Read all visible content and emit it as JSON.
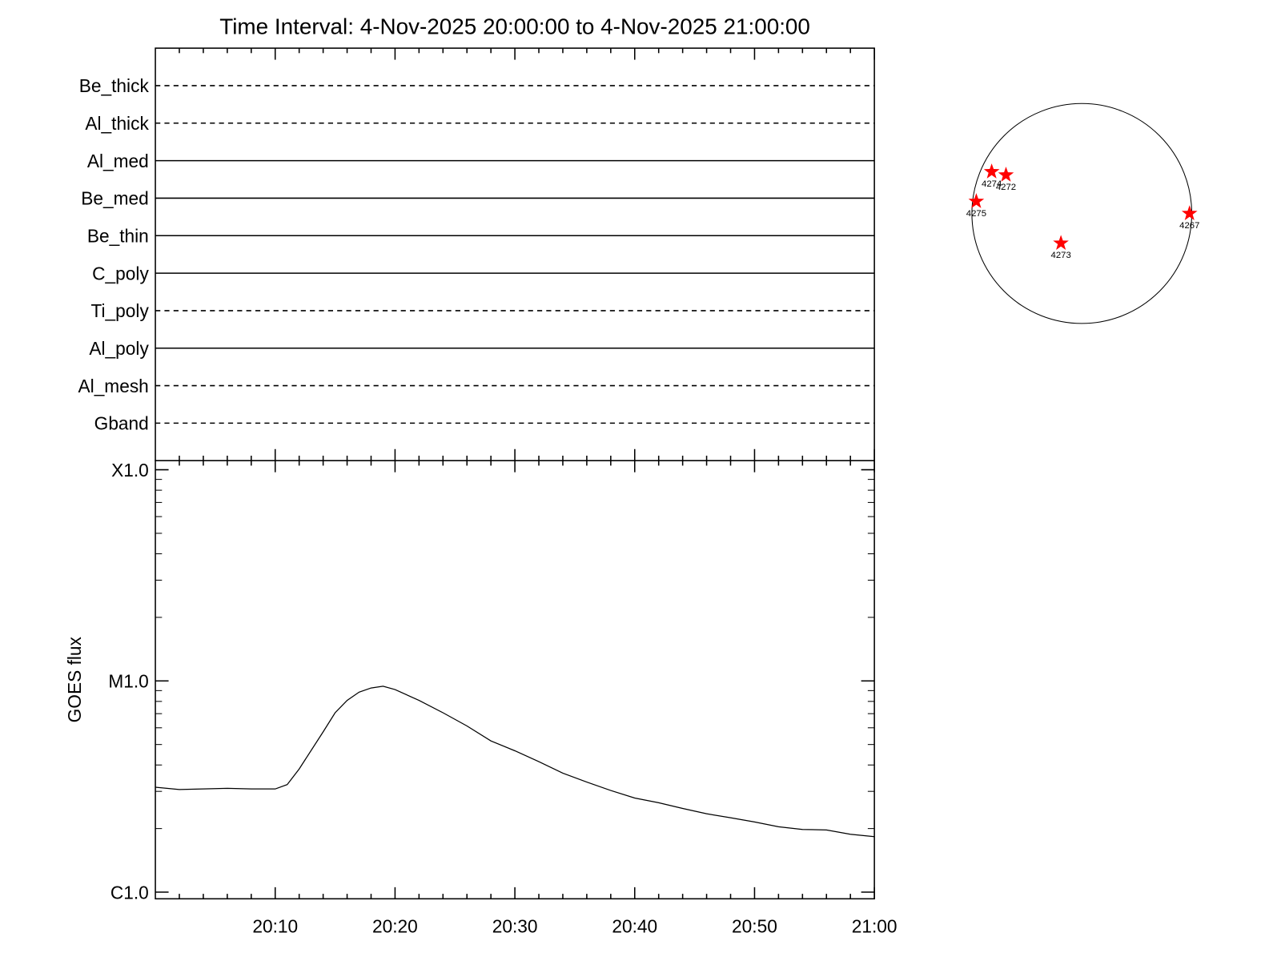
{
  "chart_data": [
    {
      "type": "timeline",
      "title": "Time Interval:  4-Nov-2025 20:00:00 to  4-Nov-2025 21:00:00",
      "categories": [
        "Be_thick",
        "Al_thick",
        "Al_med",
        "Be_med",
        "Be_thin",
        "C_poly",
        "Ti_poly",
        "Al_poly",
        "Al_mesh",
        "Gband"
      ],
      "line_styles": [
        "dashed",
        "dashed",
        "solid",
        "solid",
        "solid",
        "solid",
        "dashed",
        "solid",
        "dashed",
        "dashed"
      ],
      "xlim": [
        "20:00",
        "21:00"
      ]
    },
    {
      "type": "line",
      "ylabel": "GOES flux",
      "color": "#000000",
      "x": [
        "20:00",
        "20:02",
        "20:04",
        "20:06",
        "20:08",
        "20:10",
        "20:11",
        "20:12",
        "20:14",
        "20:15",
        "20:16",
        "20:17",
        "20:18",
        "20:19",
        "20:20",
        "20:22",
        "20:24",
        "20:26",
        "20:28",
        "20:30",
        "20:32",
        "20:34",
        "20:36",
        "20:38",
        "20:40",
        "20:42",
        "20:44",
        "20:46",
        "20:48",
        "20:50",
        "20:52",
        "20:54",
        "20:56",
        "20:58",
        "21:00"
      ],
      "values": [
        3.14e-06,
        3.06e-06,
        3.08e-06,
        3.1e-06,
        3.08e-06,
        3.08e-06,
        3.23e-06,
        3.83e-06,
        5.74e-06,
        7.07e-06,
        8.09e-06,
        8.85e-06,
        9.26e-06,
        9.44e-06,
        9.1e-06,
        8.09e-06,
        7.07e-06,
        6.12e-06,
        5.2e-06,
        4.67e-06,
        4.15e-06,
        3.66e-06,
        3.32e-06,
        3.03e-06,
        2.79e-06,
        2.65e-06,
        2.49e-06,
        2.35e-06,
        2.25e-06,
        2.15e-06,
        2.04e-06,
        1.98e-06,
        1.97e-06,
        1.88e-06,
        1.83e-06
      ],
      "xlim": [
        "20:00",
        "21:00"
      ],
      "xticks": [
        "20:10",
        "20:20",
        "20:30",
        "20:40",
        "20:50",
        "21:00"
      ],
      "minor_xticks": [
        "20:02",
        "20:04",
        "20:06",
        "20:08",
        "20:12",
        "20:14",
        "20:16",
        "20:18",
        "20:22",
        "20:24",
        "20:26",
        "20:28",
        "20:32",
        "20:34",
        "20:36",
        "20:38",
        "20:42",
        "20:44",
        "20:46",
        "20:48",
        "20:52",
        "20:54",
        "20:56",
        "20:58"
      ],
      "yscale": "log",
      "ylim": [
        9.3e-07,
        0.0001104
      ],
      "yticks": [
        {
          "value": 1e-06,
          "label": "C1.0"
        },
        {
          "value": 1e-05,
          "label": "M1.0"
        },
        {
          "value": 0.0001,
          "label": "X1.0"
        }
      ],
      "minor_yticks": [
        2e-06,
        3e-06,
        4e-06,
        5e-06,
        6e-06,
        7e-06,
        8e-06,
        9e-06,
        2e-05,
        3e-05,
        4e-05,
        5e-05,
        6e-05,
        7e-05,
        8e-05,
        9e-05
      ]
    },
    {
      "type": "scatter",
      "marker": "star",
      "color": "#ff0000",
      "labels": [
        "4274",
        "4272",
        "4275",
        "4267",
        "4273"
      ],
      "x": [
        -0.82,
        -0.69,
        -0.96,
        0.98,
        -0.19
      ],
      "y": [
        0.38,
        0.35,
        0.11,
        0.0,
        -0.27
      ],
      "xlim": [
        -1,
        1
      ],
      "ylim": [
        -1,
        1
      ]
    }
  ]
}
